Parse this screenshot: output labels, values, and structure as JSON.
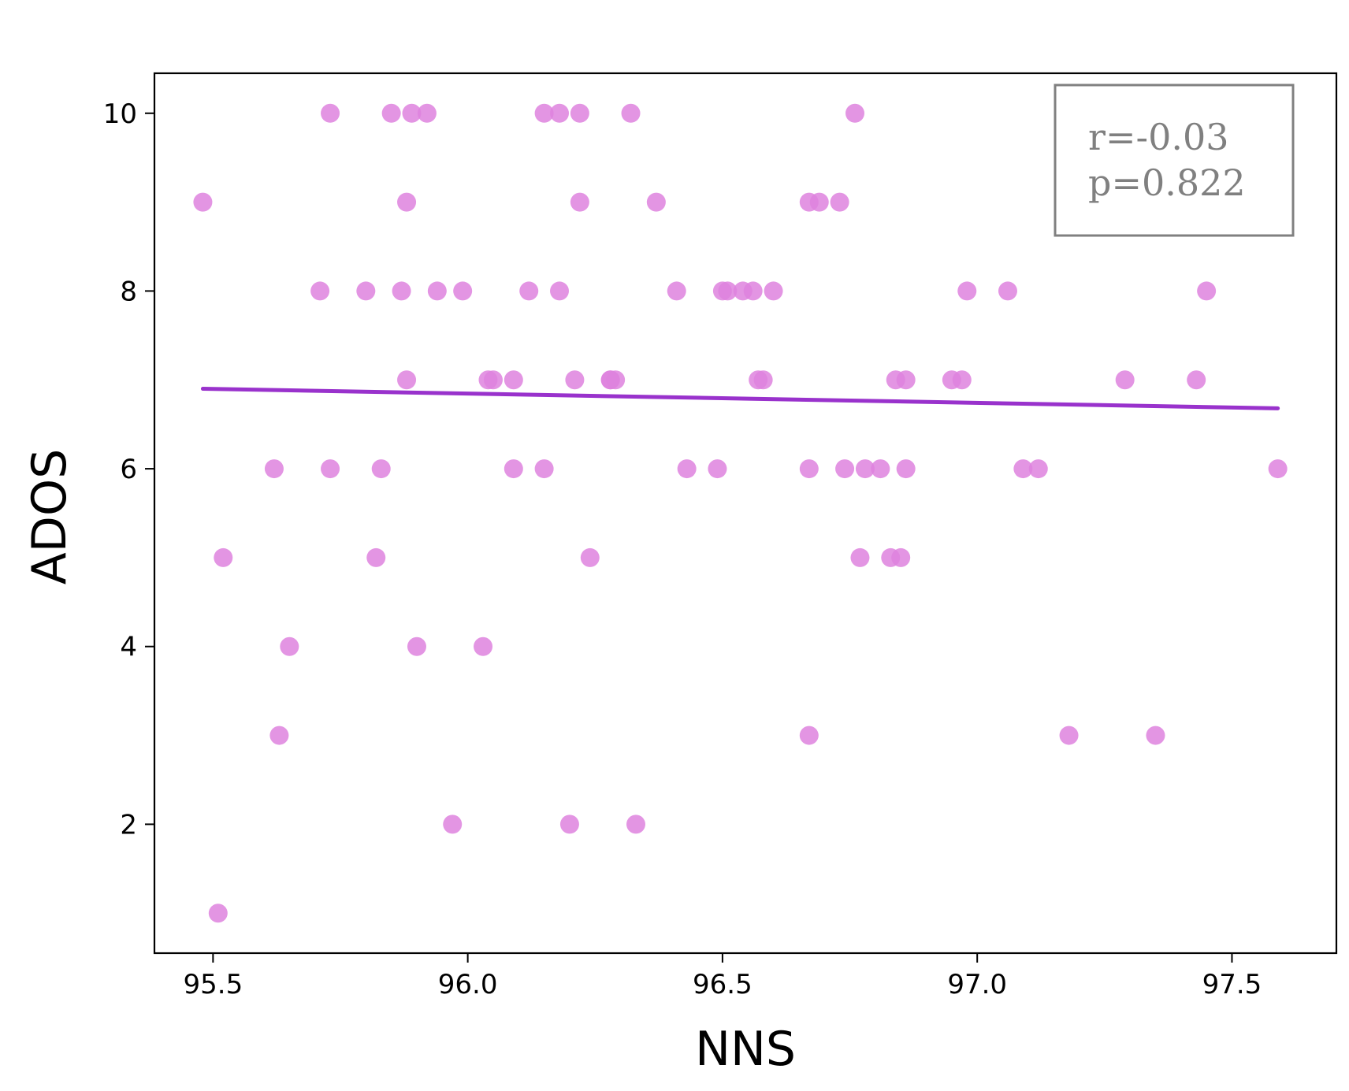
{
  "chart_data": {
    "type": "scatter",
    "xlabel": "NNS",
    "ylabel": "ADOS",
    "xlim": [
      95.385,
      97.705
    ],
    "ylim": [
      0.55,
      10.45
    ],
    "xticks": [
      95.5,
      96.0,
      96.5,
      97.0,
      97.5
    ],
    "xtick_labels": [
      "95.5",
      "96.0",
      "96.5",
      "97.0",
      "97.5"
    ],
    "yticks": [
      2,
      4,
      6,
      8,
      10
    ],
    "ytick_labels": [
      "2",
      "4",
      "6",
      "8",
      "10"
    ],
    "grid": false,
    "point_color": "#de82de",
    "line_color": "#9932cc",
    "points": [
      {
        "x": 95.48,
        "y": 9
      },
      {
        "x": 95.51,
        "y": 1
      },
      {
        "x": 95.52,
        "y": 5
      },
      {
        "x": 95.62,
        "y": 6
      },
      {
        "x": 95.63,
        "y": 3
      },
      {
        "x": 95.65,
        "y": 4
      },
      {
        "x": 95.71,
        "y": 8
      },
      {
        "x": 95.73,
        "y": 10
      },
      {
        "x": 95.73,
        "y": 6
      },
      {
        "x": 95.8,
        "y": 8
      },
      {
        "x": 95.82,
        "y": 5
      },
      {
        "x": 95.83,
        "y": 6
      },
      {
        "x": 95.85,
        "y": 10
      },
      {
        "x": 95.87,
        "y": 8
      },
      {
        "x": 95.88,
        "y": 9
      },
      {
        "x": 95.88,
        "y": 7
      },
      {
        "x": 95.89,
        "y": 10
      },
      {
        "x": 95.9,
        "y": 4
      },
      {
        "x": 95.92,
        "y": 10
      },
      {
        "x": 95.94,
        "y": 8
      },
      {
        "x": 95.97,
        "y": 2
      },
      {
        "x": 95.99,
        "y": 8
      },
      {
        "x": 96.03,
        "y": 4
      },
      {
        "x": 96.04,
        "y": 7
      },
      {
        "x": 96.05,
        "y": 7
      },
      {
        "x": 96.09,
        "y": 6
      },
      {
        "x": 96.09,
        "y": 7
      },
      {
        "x": 96.12,
        "y": 8
      },
      {
        "x": 96.15,
        "y": 10
      },
      {
        "x": 96.15,
        "y": 6
      },
      {
        "x": 96.18,
        "y": 8
      },
      {
        "x": 96.18,
        "y": 10
      },
      {
        "x": 96.2,
        "y": 2
      },
      {
        "x": 96.21,
        "y": 7
      },
      {
        "x": 96.22,
        "y": 10
      },
      {
        "x": 96.22,
        "y": 9
      },
      {
        "x": 96.24,
        "y": 5
      },
      {
        "x": 96.28,
        "y": 7
      },
      {
        "x": 96.28,
        "y": 7
      },
      {
        "x": 96.29,
        "y": 7
      },
      {
        "x": 96.32,
        "y": 10
      },
      {
        "x": 96.33,
        "y": 2
      },
      {
        "x": 96.37,
        "y": 9
      },
      {
        "x": 96.41,
        "y": 8
      },
      {
        "x": 96.43,
        "y": 6
      },
      {
        "x": 96.49,
        "y": 6
      },
      {
        "x": 96.5,
        "y": 8
      },
      {
        "x": 96.51,
        "y": 8
      },
      {
        "x": 96.54,
        "y": 8
      },
      {
        "x": 96.56,
        "y": 8
      },
      {
        "x": 96.57,
        "y": 7
      },
      {
        "x": 96.58,
        "y": 7
      },
      {
        "x": 96.6,
        "y": 8
      },
      {
        "x": 96.67,
        "y": 9
      },
      {
        "x": 96.67,
        "y": 6
      },
      {
        "x": 96.67,
        "y": 3
      },
      {
        "x": 96.69,
        "y": 9
      },
      {
        "x": 96.73,
        "y": 9
      },
      {
        "x": 96.74,
        "y": 6
      },
      {
        "x": 96.76,
        "y": 10
      },
      {
        "x": 96.77,
        "y": 5
      },
      {
        "x": 96.78,
        "y": 6
      },
      {
        "x": 96.81,
        "y": 6
      },
      {
        "x": 96.83,
        "y": 5
      },
      {
        "x": 96.84,
        "y": 7
      },
      {
        "x": 96.85,
        "y": 5
      },
      {
        "x": 96.86,
        "y": 7
      },
      {
        "x": 96.86,
        "y": 6
      },
      {
        "x": 96.95,
        "y": 7
      },
      {
        "x": 96.97,
        "y": 7
      },
      {
        "x": 96.98,
        "y": 8
      },
      {
        "x": 97.06,
        "y": 8
      },
      {
        "x": 97.09,
        "y": 6
      },
      {
        "x": 97.12,
        "y": 6
      },
      {
        "x": 97.18,
        "y": 3
      },
      {
        "x": 97.29,
        "y": 7
      },
      {
        "x": 97.35,
        "y": 3
      },
      {
        "x": 97.43,
        "y": 7
      },
      {
        "x": 97.45,
        "y": 8
      },
      {
        "x": 97.59,
        "y": 6
      }
    ],
    "regression_line": {
      "x": [
        95.48,
        97.59
      ],
      "y": [
        6.9,
        6.68
      ]
    },
    "annotation": {
      "r_text": "r=-0.03",
      "p_text": "p=0.822",
      "placement": "top-right"
    }
  }
}
